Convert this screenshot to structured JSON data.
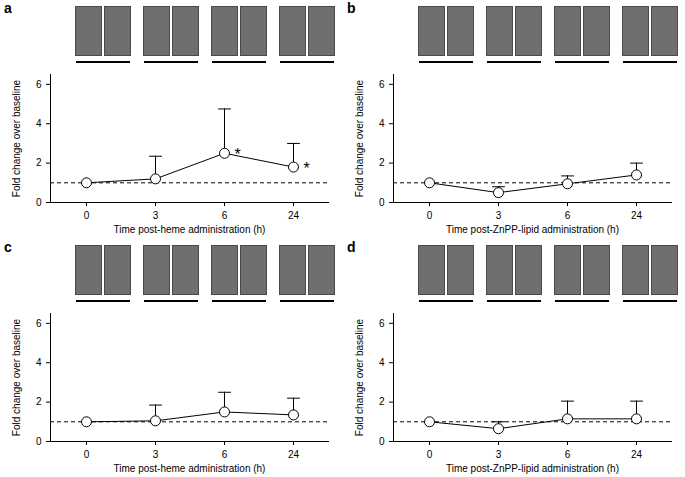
{
  "chart_data": [
    {
      "type": "line",
      "panel_label": "a",
      "x_label": "Time post-heme administration (h)",
      "y_label": "Fold change over baseline",
      "categories": [
        "0",
        "3",
        "6",
        "24"
      ],
      "values": [
        1,
        1.2,
        2.5,
        1.8
      ],
      "error": [
        0,
        1.15,
        2.25,
        1.2
      ],
      "baseline": 1,
      "annotations": [
        {
          "x": "6",
          "y": 2.5,
          "text": "*"
        },
        {
          "x": "24",
          "y": 1.8,
          "text": "*"
        }
      ],
      "ylim": [
        0,
        6.5
      ],
      "yticks": [
        0,
        2,
        4,
        6
      ],
      "color": "#000000",
      "marker": "circle",
      "grid": false
    },
    {
      "type": "line",
      "panel_label": "b",
      "x_label": "Time post-ZnPP-lipid administration (h)",
      "y_label": "Fold change over baseline",
      "categories": [
        "0",
        "3",
        "6",
        "24"
      ],
      "values": [
        1,
        0.5,
        0.95,
        1.4
      ],
      "error": [
        0,
        0.3,
        0.4,
        0.6
      ],
      "baseline": 1,
      "annotations": [],
      "ylim": [
        0,
        6.5
      ],
      "yticks": [
        0,
        2,
        4,
        6
      ],
      "color": "#000000",
      "marker": "circle",
      "grid": false
    },
    {
      "type": "line",
      "panel_label": "c",
      "x_label": "Time post-heme administration (h)",
      "y_label": "Fold change over baseline",
      "categories": [
        "0",
        "3",
        "6",
        "24"
      ],
      "values": [
        1,
        1.05,
        1.5,
        1.35
      ],
      "error": [
        0,
        0.8,
        1.0,
        0.85
      ],
      "baseline": 1,
      "annotations": [],
      "ylim": [
        0,
        6.5
      ],
      "yticks": [
        0,
        2,
        4,
        6
      ],
      "color": "#000000",
      "marker": "circle",
      "grid": false
    },
    {
      "type": "line",
      "panel_label": "d",
      "x_label": "Time post-ZnPP-lipid administration (h)",
      "y_label": "Fold change over baseline",
      "categories": [
        "0",
        "3",
        "6",
        "24"
      ],
      "values": [
        1,
        0.65,
        1.15,
        1.15
      ],
      "error": [
        0,
        0.35,
        0.9,
        0.9
      ],
      "baseline": 1,
      "annotations": [],
      "ylim": [
        0,
        6.5
      ],
      "yticks": [
        0,
        2,
        4,
        6
      ],
      "color": "#000000",
      "marker": "circle",
      "grid": false
    }
  ]
}
